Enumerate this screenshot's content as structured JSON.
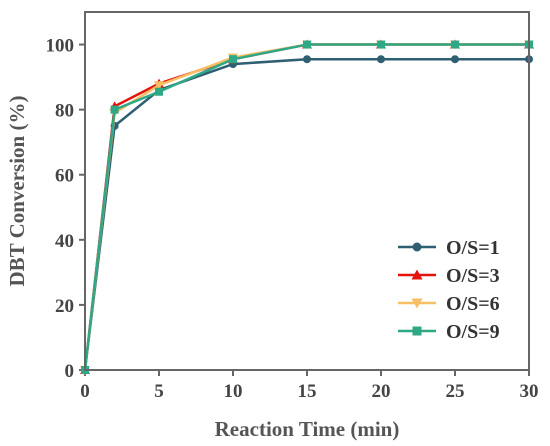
{
  "chart_data": {
    "type": "line",
    "xlabel": "Reaction Time (min)",
    "ylabel": "DBT Conversion (%)",
    "xlim": [
      0,
      30
    ],
    "ylim": [
      0,
      110
    ],
    "xticks": [
      0,
      5,
      10,
      15,
      20,
      25,
      30
    ],
    "yticks": [
      0,
      20,
      40,
      60,
      80,
      100
    ],
    "x": [
      0,
      2,
      5,
      10,
      15,
      20,
      25,
      30
    ],
    "grid": false,
    "legend_position": "bottom-right",
    "series": [
      {
        "name": "O/S=1",
        "color": "#2f5f73",
        "marker": "circle",
        "values": [
          0,
          75,
          86,
          94,
          95.5,
          95.5,
          95.5,
          95.5
        ]
      },
      {
        "name": "O/S=3",
        "color": "#e3120b",
        "marker": "triangle-up",
        "values": [
          0,
          81,
          88,
          95.5,
          100,
          100,
          100,
          100
        ]
      },
      {
        "name": "O/S=6",
        "color": "#f6bf63",
        "marker": "triangle-down",
        "values": [
          0,
          79,
          87.5,
          96,
          100,
          100,
          100,
          100
        ]
      },
      {
        "name": "O/S=9",
        "color": "#2fa886",
        "marker": "square",
        "values": [
          0,
          80,
          85.5,
          95.5,
          100,
          100,
          100,
          100
        ]
      }
    ]
  }
}
